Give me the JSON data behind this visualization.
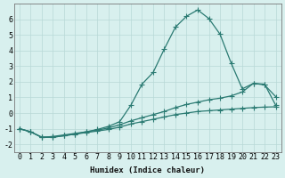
{
  "line1_x": [
    0,
    1,
    2,
    3,
    4,
    5,
    6,
    7,
    8,
    9,
    10,
    11,
    12,
    13,
    14,
    15,
    16,
    17,
    18,
    19,
    20,
    21,
    22,
    23
  ],
  "line1_y": [
    -1.0,
    -1.2,
    -1.55,
    -1.55,
    -1.45,
    -1.35,
    -1.25,
    -1.15,
    -1.05,
    -0.9,
    -0.7,
    -0.55,
    -0.4,
    -0.25,
    -0.1,
    0.0,
    0.1,
    0.15,
    0.2,
    0.25,
    0.3,
    0.35,
    0.38,
    0.4
  ],
  "line2_x": [
    0,
    1,
    2,
    3,
    4,
    5,
    6,
    7,
    8,
    9,
    10,
    11,
    12,
    13,
    14,
    15,
    16,
    17,
    18,
    19,
    20,
    21,
    22,
    23
  ],
  "line2_y": [
    -1.0,
    -1.2,
    -1.55,
    -1.55,
    -1.45,
    -1.35,
    -1.2,
    -1.05,
    -0.85,
    -0.55,
    0.5,
    1.85,
    2.6,
    4.1,
    5.5,
    6.2,
    6.6,
    6.05,
    5.05,
    3.2,
    1.55,
    1.9,
    1.8,
    1.05
  ],
  "line3_x": [
    0,
    1,
    2,
    3,
    4,
    5,
    6,
    7,
    8,
    9,
    10,
    11,
    12,
    13,
    14,
    15,
    16,
    17,
    18,
    19,
    20,
    21,
    22,
    23
  ],
  "line3_y": [
    -1.0,
    -1.2,
    -1.55,
    -1.5,
    -1.4,
    -1.3,
    -1.2,
    -1.1,
    -0.95,
    -0.75,
    -0.5,
    -0.3,
    -0.1,
    0.1,
    0.35,
    0.55,
    0.7,
    0.85,
    0.95,
    1.1,
    1.35,
    1.9,
    1.85,
    0.5
  ],
  "line_color": "#2a7a72",
  "bg_color": "#d8f0ee",
  "grid_color": "#b8d8d6",
  "xlabel": "Humidex (Indice chaleur)",
  "xlim": [
    -0.5,
    23.5
  ],
  "ylim": [
    -2.5,
    7.0
  ],
  "yticks": [
    -2,
    -1,
    0,
    1,
    2,
    3,
    4,
    5,
    6
  ],
  "xticks": [
    0,
    1,
    2,
    3,
    4,
    5,
    6,
    7,
    8,
    9,
    10,
    11,
    12,
    13,
    14,
    15,
    16,
    17,
    18,
    19,
    20,
    21,
    22,
    23
  ],
  "xlabel_fontsize": 6.5,
  "tick_fontsize": 6.0,
  "marker_size": 2.0,
  "line_width": 0.9
}
